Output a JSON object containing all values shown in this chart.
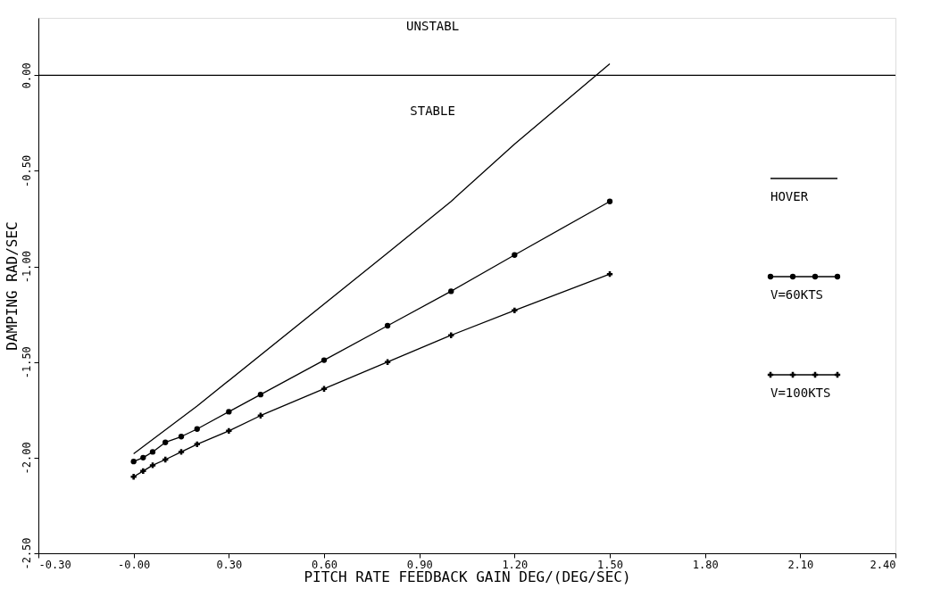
{
  "chart_data": {
    "type": "line",
    "xlabel": "PITCH RATE FEEDBACK GAIN DEG/(DEG/SEC)",
    "ylabel": "DAMPING RAD/SEC",
    "xlim": [
      -0.3,
      2.4
    ],
    "ylim": [
      -2.5,
      0.3
    ],
    "xticks": [
      {
        "value": -0.3,
        "label": "-0.30"
      },
      {
        "value": 0,
        "label": "-0.00"
      },
      {
        "value": 0.3,
        "label": "0.30"
      },
      {
        "value": 0.6,
        "label": "0.60"
      },
      {
        "value": 0.9,
        "label": "0.90"
      },
      {
        "value": 1.2,
        "label": "1.20"
      },
      {
        "value": 1.5,
        "label": "1.50"
      },
      {
        "value": 1.8,
        "label": "1.80"
      },
      {
        "value": 2.1,
        "label": "2.10"
      },
      {
        "value": 2.4,
        "label": "2.40"
      }
    ],
    "yticks": [
      {
        "value": 0,
        "label": "0.00"
      },
      {
        "value": -0.5,
        "label": "-0.50"
      },
      {
        "value": -1,
        "label": "-1.00"
      },
      {
        "value": -1.5,
        "label": "-1.50"
      },
      {
        "value": -2,
        "label": "-2.00"
      },
      {
        "value": -2.5,
        "label": "-2.50"
      }
    ],
    "series": [
      {
        "name": "HOVER",
        "color": "#000000",
        "marker": "none",
        "x": [
          0,
          0.2,
          0.8,
          1.0,
          1.2,
          1.5
        ],
        "values": [
          -1.98,
          -1.73,
          -0.93,
          -0.66,
          -0.36,
          0.06
        ]
      },
      {
        "name": "V=60KTS",
        "color": "#000000",
        "marker": "circle",
        "x": [
          0,
          0.03,
          0.06,
          0.1,
          0.15,
          0.2,
          0.3,
          0.4,
          0.6,
          0.8,
          1.0,
          1.2,
          1.5
        ],
        "values": [
          -2.02,
          -2.0,
          -1.97,
          -1.92,
          -1.89,
          -1.85,
          -1.76,
          -1.67,
          -1.49,
          -1.31,
          -1.13,
          -0.94,
          -0.66
        ]
      },
      {
        "name": "V=100KTS",
        "color": "#000000",
        "marker": "cross",
        "x": [
          0,
          0.03,
          0.06,
          0.1,
          0.15,
          0.2,
          0.3,
          0.4,
          0.6,
          0.8,
          1.0,
          1.2,
          1.5
        ],
        "values": [
          -2.1,
          -2.07,
          -2.04,
          -2.01,
          -1.97,
          -1.93,
          -1.86,
          -1.78,
          -1.64,
          -1.5,
          -1.36,
          -1.23,
          -1.04
        ]
      }
    ],
    "ref_lines": [
      {
        "axis": "y",
        "value": 0,
        "color": "#000000"
      }
    ],
    "annotations": [
      "UNSTABL",
      "STABLE"
    ],
    "legend": "right",
    "grid": false,
    "line_style": "solid"
  }
}
